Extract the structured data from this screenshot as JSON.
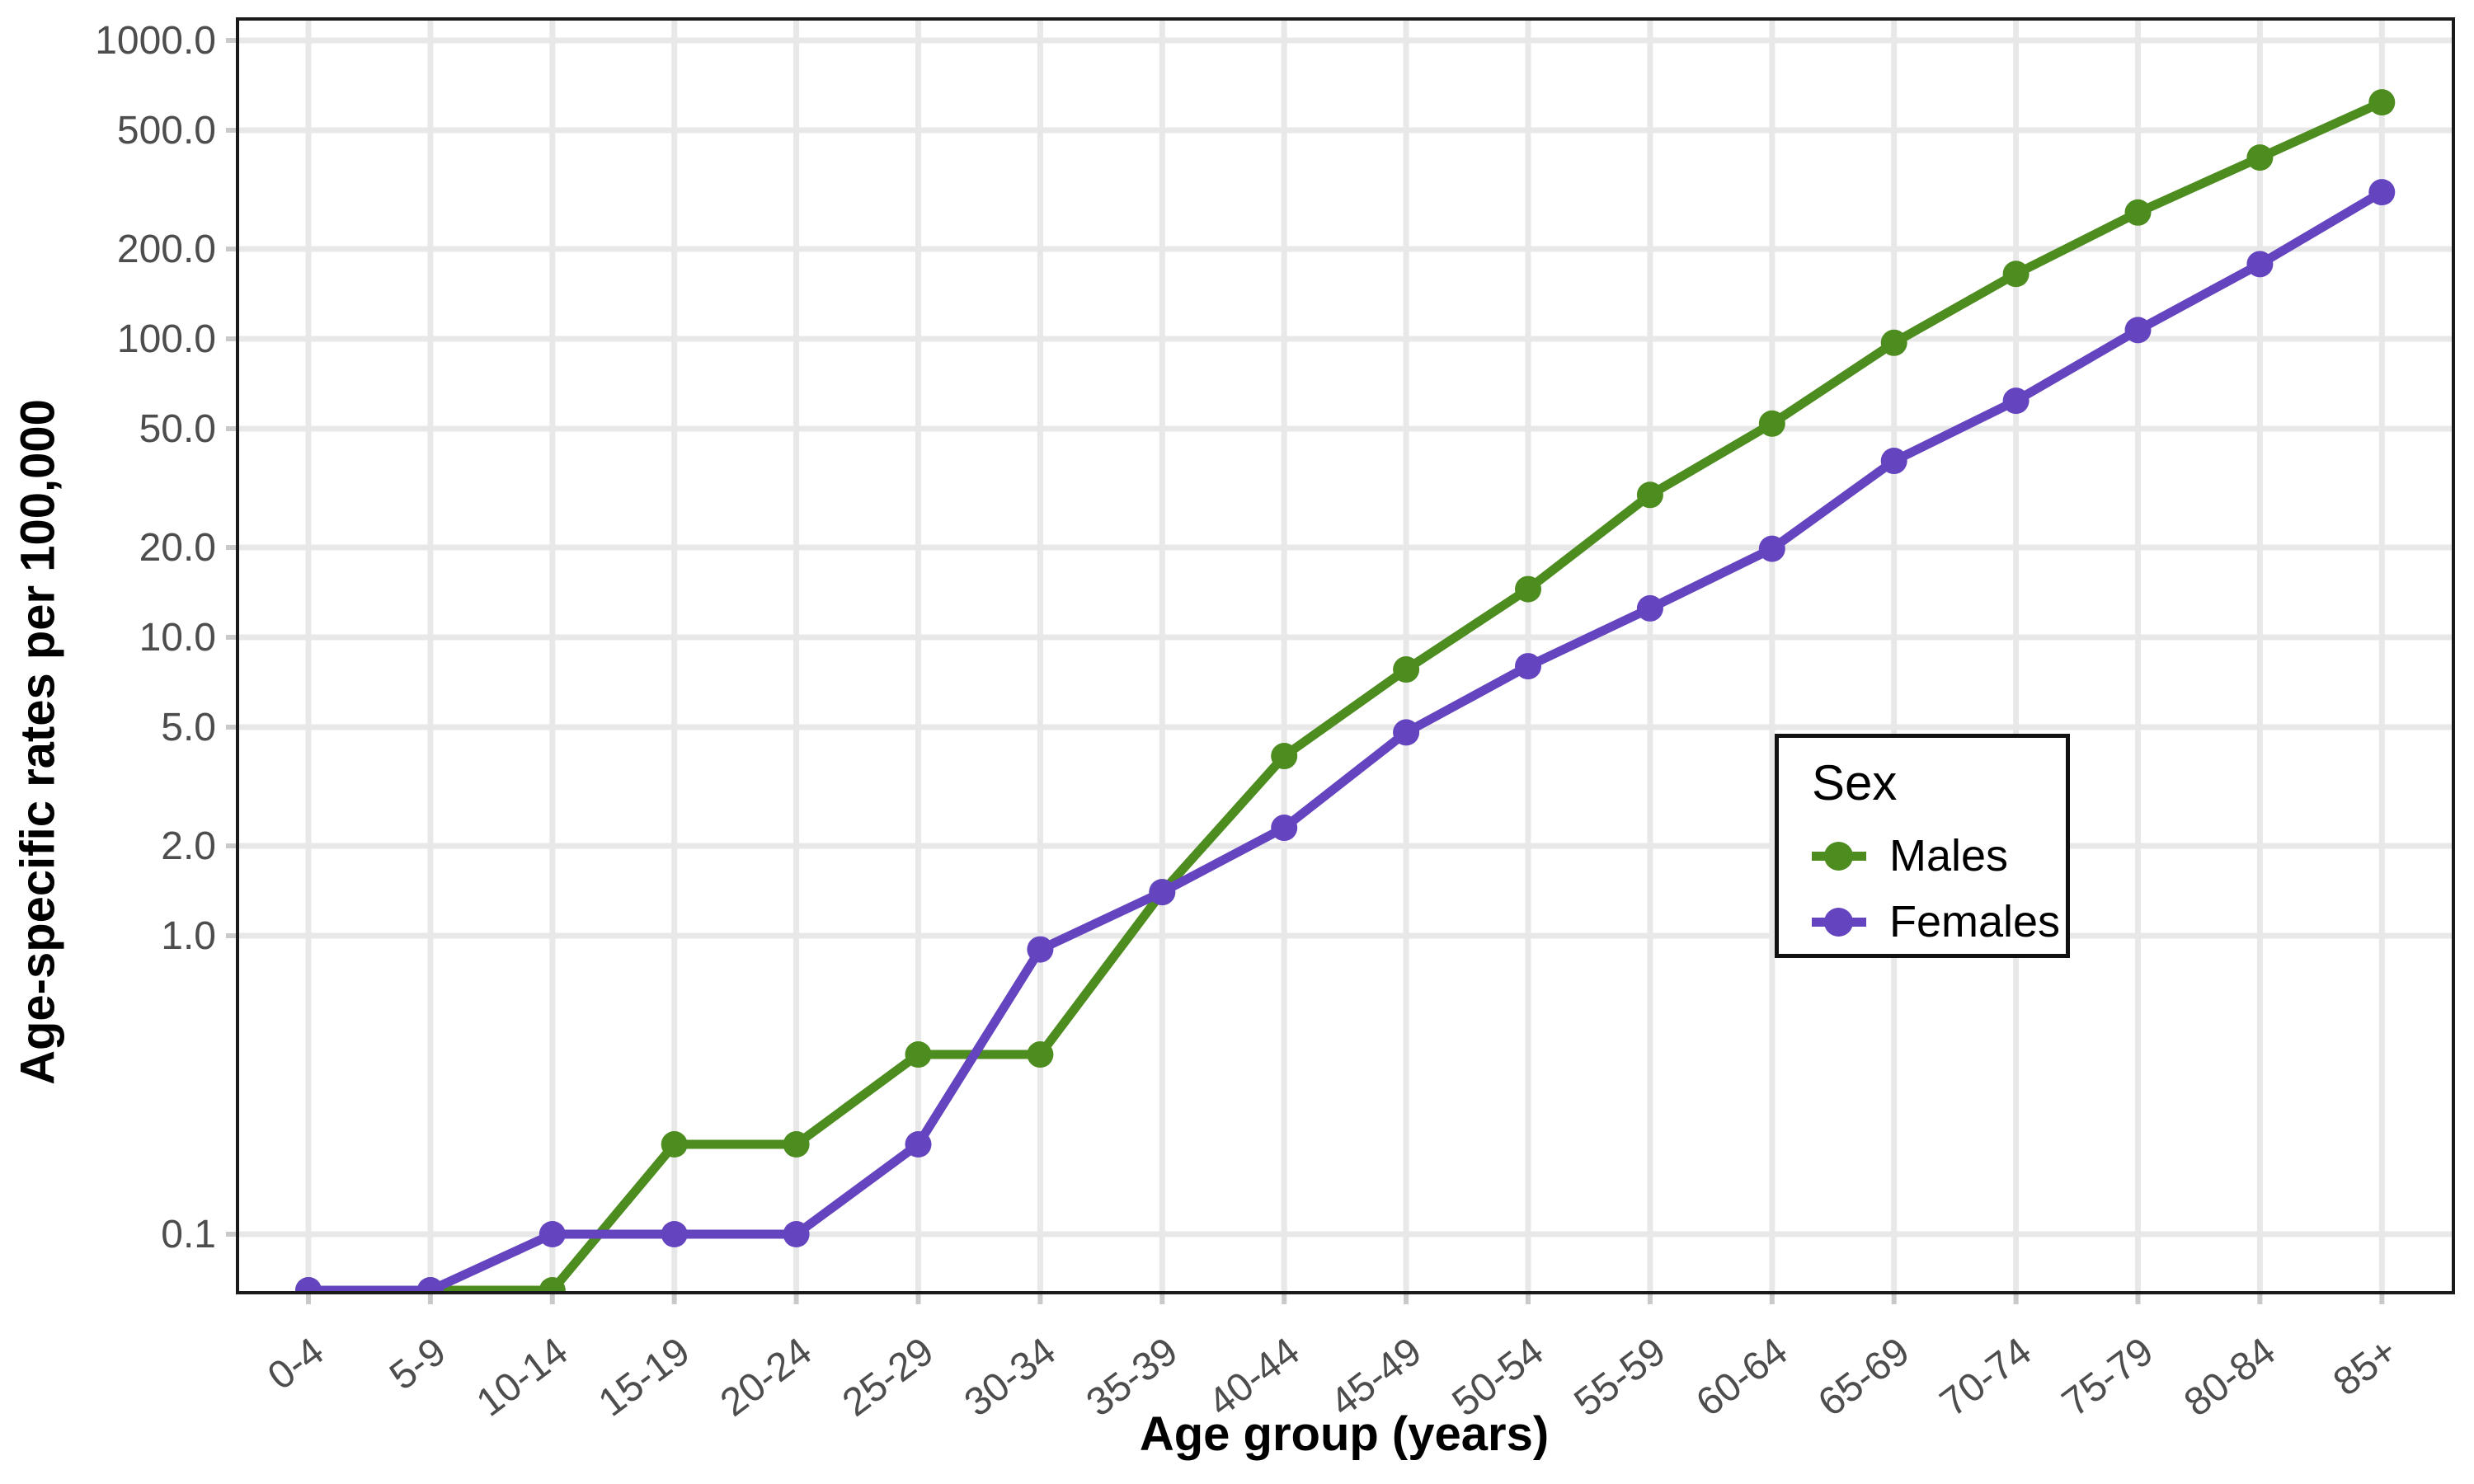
{
  "chart_data": {
    "type": "line",
    "title": "",
    "xlabel": "Age group (years)",
    "ylabel": "Age-specific rates per 100,000",
    "scale_y": "log10",
    "grid": "major-only",
    "panel_border_color": "#1a1a1a",
    "gridline_color": "#e8e8e8",
    "tick_color": "#c9c9c9",
    "tick_label_color": "#4d4d4d",
    "categories": [
      "0-4",
      "5-9",
      "10-14",
      "15-19",
      "20-24",
      "25-29",
      "30-34",
      "35-39",
      "40-44",
      "45-49",
      "50-54",
      "55-59",
      "60-64",
      "65-69",
      "70-74",
      "75-79",
      "80-84",
      "85+"
    ],
    "y_breaks": [
      {
        "label": "1000.0",
        "value": 1000
      },
      {
        "label": "500.0",
        "value": 500
      },
      {
        "label": "200.0",
        "value": 200
      },
      {
        "label": "100.0",
        "value": 100
      },
      {
        "label": "50.0",
        "value": 50
      },
      {
        "label": "20.0",
        "value": 20
      },
      {
        "label": "10.0",
        "value": 10
      },
      {
        "label": "5.0",
        "value": 5
      },
      {
        "label": "2.0",
        "value": 2
      },
      {
        "label": "1.0",
        "value": 1
      },
      {
        "label": "0.1",
        "value": 0.1
      }
    ],
    "ylim_visible": [
      0.065,
      1280
    ],
    "values_below_axis_are_clipped_at_bottom": true,
    "series": [
      {
        "name": "Males",
        "color": "#4d8c1e",
        "values": [
          0.05,
          0.05,
          0.05,
          0.2,
          0.2,
          0.4,
          0.4,
          1.4,
          4.0,
          7.8,
          14.5,
          30,
          52,
          97,
          165,
          265,
          405,
          620
        ]
      },
      {
        "name": "Females",
        "color": "#6544c0",
        "values": [
          0.05,
          0.05,
          0.1,
          0.1,
          0.1,
          0.2,
          0.9,
          1.4,
          2.3,
          4.8,
          8.0,
          12.5,
          19.8,
          39,
          62,
          107,
          178,
          310
        ]
      }
    ],
    "legend": {
      "title": "Sex",
      "position": "inside right, lower middle"
    }
  }
}
